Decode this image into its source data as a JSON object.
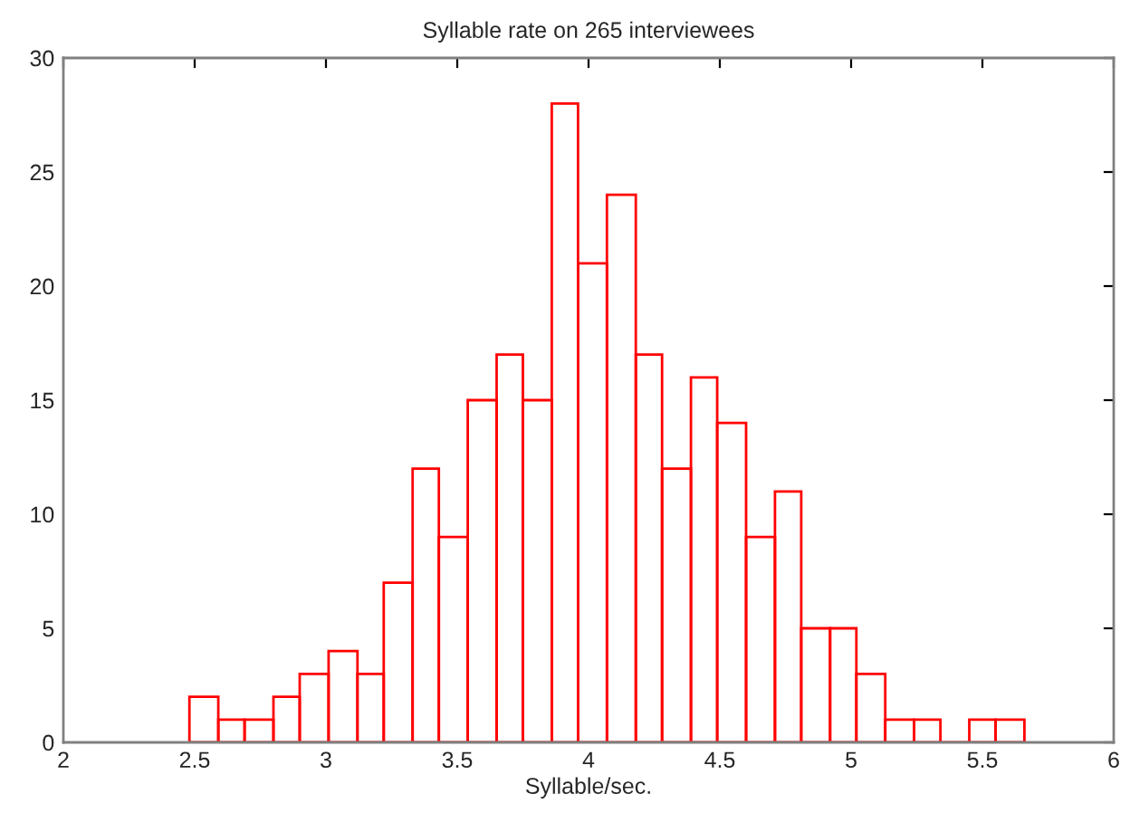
{
  "chart_data": {
    "type": "histogram",
    "title": "Syllable rate on 265 interviewees",
    "xlabel": "Syllable/sec.",
    "bins": [
      2.48,
      2.59,
      2.69,
      2.8,
      2.9,
      3.01,
      3.12,
      3.22,
      3.33,
      3.43,
      3.54,
      3.65,
      3.75,
      3.86,
      3.96,
      4.07,
      4.18,
      4.28,
      4.39,
      4.49,
      4.6,
      4.71,
      4.81,
      4.92,
      5.02,
      5.13,
      5.24,
      5.34,
      5.45,
      5.55,
      5.66
    ],
    "values": [
      2,
      1,
      1,
      2,
      3,
      4,
      3,
      7,
      12,
      9,
      15,
      17,
      15,
      28,
      21,
      24,
      17,
      12,
      16,
      14,
      9,
      11,
      5,
      5,
      3,
      1,
      1,
      0,
      1,
      1
    ],
    "color": "#ff0000",
    "xlim": [
      2,
      6
    ],
    "xticks": [
      2,
      2.5,
      3,
      3.5,
      4,
      4.5,
      5,
      5.5,
      6
    ],
    "ylim": [
      0,
      30
    ],
    "yticks": [
      0,
      5,
      10,
      15,
      20,
      25,
      30
    ],
    "grid": false
  }
}
